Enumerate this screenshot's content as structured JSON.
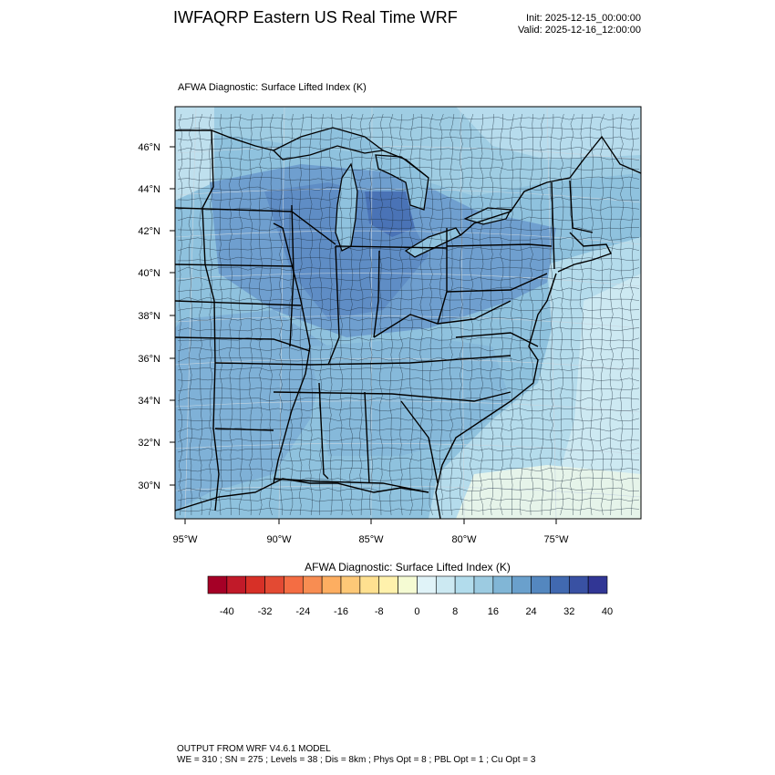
{
  "header": {
    "title": "IWFAQRP Eastern US Real Time WRF",
    "init": "Init: 2025-12-15_00:00:00",
    "valid": "Valid: 2025-12-16_12:00:00"
  },
  "map": {
    "subtitle": "AFWA Diagnostic: Surface Lifted Index   (K)",
    "lat_labels": [
      "46°N",
      "44°N",
      "42°N",
      "40°N",
      "38°N",
      "36°N",
      "34°N",
      "32°N",
      "30°N"
    ],
    "lon_labels": [
      "95°W",
      "90°W",
      "85°W",
      "80°W",
      "75°W"
    ]
  },
  "colorbar": {
    "title": "AFWA Diagnostic: Surface Lifted Index  (K)",
    "tick_labels": [
      "-40",
      "-32",
      "-24",
      "-16",
      "-8",
      "0",
      "8",
      "16",
      "24",
      "32",
      "40"
    ],
    "colors": [
      "#a50026",
      "#c11a29",
      "#d73027",
      "#e34a33",
      "#f46d43",
      "#f88d52",
      "#fdae61",
      "#fdc877",
      "#fee090",
      "#fff1ac",
      "#f5fbd3",
      "#e0f3f8",
      "#cce9f2",
      "#b2dcec",
      "#9ccbe1",
      "#81b6d6",
      "#6aa0cc",
      "#5487bf",
      "#4169b0",
      "#3951a3",
      "#313695"
    ]
  },
  "footer": {
    "line1": "OUTPUT FROM WRF V4.6.1 MODEL",
    "line2": "WE = 310 ; SN = 275 ; Levels = 38 ; Dis = 8km ; Phys Opt = 8 ; PBL Opt = 1 ; Cu Opt = 3"
  }
}
